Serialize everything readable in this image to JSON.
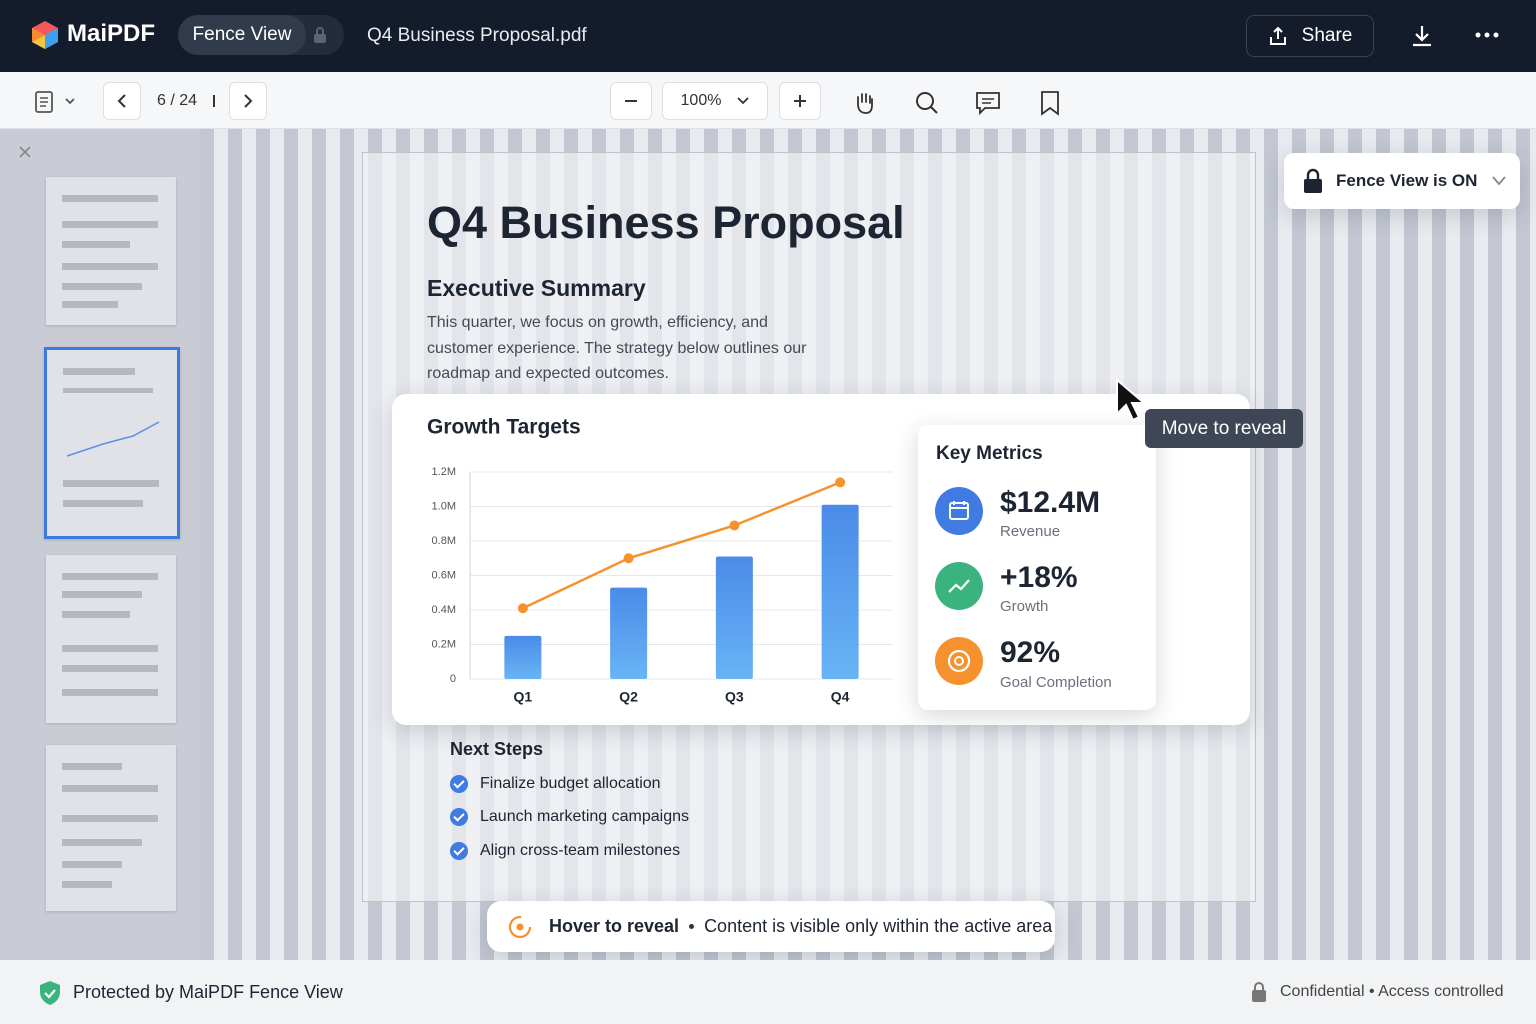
{
  "app": {
    "brand": "MaiPDF",
    "mode": "Fence View",
    "file_name": "Q4 Business Proposal.pdf",
    "share": "Share"
  },
  "toolbar": {
    "page_indicator": "6 / 24",
    "zoom": "100%"
  },
  "fence_status": "Fence View is ON",
  "tooltip": "Move to reveal",
  "document": {
    "title": "Q4 Business Proposal",
    "section": "Executive Summary",
    "summary": "This quarter, we focus on growth, efficiency, and customer experience. The strategy below outlines our roadmap and expected outcomes.",
    "next_steps": {
      "heading": "Next Steps",
      "items": [
        "Finalize budget allocation",
        "Launch marketing campaigns",
        "Align cross-team milestones"
      ]
    }
  },
  "chart_data": {
    "type": "bar",
    "title": "Growth Targets",
    "categories": [
      "Q1",
      "Q2",
      "Q3",
      "Q4"
    ],
    "series": [
      {
        "type": "bar",
        "color": "#4a8be8",
        "values": [
          250000,
          530000,
          710000,
          1010000
        ]
      },
      {
        "type": "line",
        "color": "#f5922e",
        "values": [
          410000,
          700000,
          890000,
          1140000
        ]
      }
    ],
    "ylim": [
      0,
      1200000
    ],
    "yticks": [
      0,
      {
        "value": 200000,
        "label": "0.2M"
      },
      {
        "value": 400000,
        "label": "0.4M"
      },
      {
        "value": 600000,
        "label": "0.6M"
      },
      {
        "value": 800000,
        "label": "0.8M"
      },
      {
        "value": 1000000,
        "label": "1.0M"
      },
      {
        "value": 1200000,
        "label": "1.2M"
      }
    ],
    "grid": true
  },
  "metrics": {
    "heading": "Key Metrics",
    "items": [
      {
        "value": "$12.4M",
        "label": "Revenue"
      },
      {
        "value": "+18%",
        "label": "Growth"
      },
      {
        "value": "92%",
        "label": "Goal Completion"
      }
    ]
  },
  "hint": {
    "title": "Hover to reveal",
    "text": "Content is visible only within the active area"
  },
  "footer": {
    "left": "Protected by MaiPDF Fence View",
    "right": "Confidential • Access controlled"
  }
}
